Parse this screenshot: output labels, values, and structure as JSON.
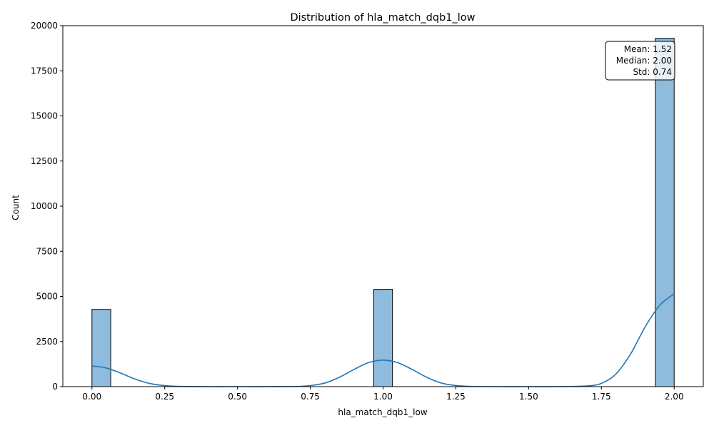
{
  "chart_data": {
    "type": "bar",
    "title": "Distribution of hla_match_dqb1_low",
    "xlabel": "hla_match_dqb1_low",
    "ylabel": "Count",
    "xlim": [
      -0.1,
      2.1
    ],
    "ylim": [
      0,
      20000
    ],
    "x_ticks": [
      0.0,
      0.25,
      0.5,
      0.75,
      1.0,
      1.25,
      1.5,
      1.75,
      2.0
    ],
    "x_tick_labels": [
      "0.00",
      "0.25",
      "0.50",
      "0.75",
      "1.00",
      "1.25",
      "1.50",
      "1.75",
      "2.00"
    ],
    "y_ticks": [
      0,
      2500,
      5000,
      7500,
      10000,
      12500,
      15000,
      17500,
      20000
    ],
    "y_tick_labels": [
      "0",
      "2500",
      "5000",
      "7500",
      "10000",
      "12500",
      "15000",
      "17500",
      "20000"
    ],
    "bins": [
      {
        "x0": 0.0,
        "x1": 0.0645,
        "count": 4280
      },
      {
        "x0": 0.9677,
        "x1": 1.0323,
        "count": 5390
      },
      {
        "x0": 1.9355,
        "x1": 2.0,
        "count": 19300
      }
    ],
    "kde": {
      "x": [
        0.0,
        0.05,
        0.1,
        0.15,
        0.2,
        0.25,
        0.3,
        0.4,
        0.5,
        0.6,
        0.7,
        0.75,
        0.8,
        0.85,
        0.9,
        0.95,
        1.0,
        1.05,
        1.1,
        1.15,
        1.2,
        1.25,
        1.3,
        1.4,
        1.5,
        1.6,
        1.7,
        1.75,
        1.8,
        1.85,
        1.9,
        1.95,
        2.0
      ],
      "y": [
        1150,
        1030,
        740,
        410,
        170,
        55,
        15,
        0,
        0,
        0,
        10,
        60,
        200,
        520,
        950,
        1330,
        1470,
        1330,
        950,
        520,
        200,
        60,
        15,
        0,
        0,
        0,
        40,
        180,
        700,
        1800,
        3300,
        4500,
        5150
      ]
    },
    "grid": false,
    "legend": "none",
    "stats_box": {
      "position": "top-right",
      "lines": [
        "Mean: 1.52",
        "Median: 2.00",
        "Std: 0.74"
      ]
    },
    "colors": {
      "bar_fill": "#8fbbdc",
      "bar_edge": "#000000",
      "kde_line": "#1f77b4"
    }
  }
}
